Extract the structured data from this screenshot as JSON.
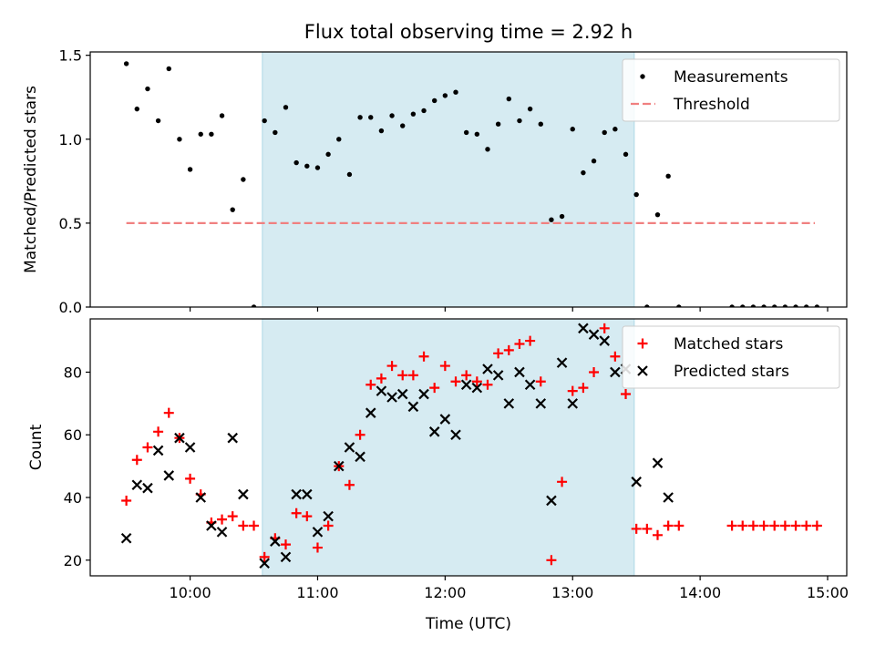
{
  "title": "Flux total observing time = 2.92 h",
  "colors": {
    "band": "#add8e6",
    "band_alpha": 0.5,
    "threshold": "#f08080",
    "measurement": "#000000",
    "matched": "#ff0000",
    "predicted": "#000000"
  },
  "chart_data": [
    {
      "type": "scatter",
      "ylabel": "Matched/Predicted stars",
      "xlabel": "",
      "xlim": [
        "09:13",
        "15:09"
      ],
      "ylim": [
        0,
        1.52
      ],
      "yticks": [
        "0.0",
        "0.5",
        "1.0",
        "1.5"
      ],
      "shaded_interval": [
        "10:34",
        "13:29"
      ],
      "threshold": {
        "name": "Threshold",
        "x": [
          "09:30",
          "14:54"
        ],
        "y": 0.5
      },
      "legend": [
        "Measurements",
        "Threshold"
      ],
      "legend_position": "upper right",
      "series": [
        {
          "name": "Measurements",
          "x": [
            "09:30",
            "09:35",
            "09:40",
            "09:45",
            "09:50",
            "09:55",
            "10:00",
            "10:05",
            "10:10",
            "10:15",
            "10:20",
            "10:25",
            "10:30",
            "10:35",
            "10:40",
            "10:45",
            "10:50",
            "10:55",
            "11:00",
            "11:05",
            "11:10",
            "11:15",
            "11:20",
            "11:25",
            "11:30",
            "11:35",
            "11:40",
            "11:45",
            "11:50",
            "11:55",
            "12:00",
            "12:05",
            "12:10",
            "12:15",
            "12:20",
            "12:25",
            "12:30",
            "12:35",
            "12:40",
            "12:45",
            "12:50",
            "12:55",
            "13:00",
            "13:05",
            "13:10",
            "13:15",
            "13:20",
            "13:25",
            "13:30",
            "13:35",
            "13:40",
            "13:45",
            "13:50",
            "14:15",
            "14:20",
            "14:25",
            "14:30",
            "14:35",
            "14:40",
            "14:45",
            "14:50",
            "14:55"
          ],
          "y": [
            1.45,
            1.18,
            1.3,
            1.11,
            1.42,
            1.0,
            0.82,
            1.03,
            1.03,
            1.14,
            0.58,
            0.76,
            0.0,
            1.11,
            1.04,
            1.19,
            0.86,
            0.84,
            0.83,
            0.91,
            1.0,
            0.79,
            1.13,
            1.13,
            1.05,
            1.14,
            1.08,
            1.15,
            1.17,
            1.23,
            1.26,
            1.28,
            1.04,
            1.03,
            0.94,
            1.09,
            1.24,
            1.11,
            1.18,
            1.09,
            0.52,
            0.54,
            1.06,
            0.8,
            0.87,
            1.04,
            1.06,
            0.91,
            0.67,
            0.0,
            0.55,
            0.78,
            0.0,
            0.0,
            0.0,
            0.0,
            0.0,
            0.0,
            0.0,
            0.0,
            0.0,
            0.0
          ]
        }
      ]
    },
    {
      "type": "scatter",
      "ylabel": "Count",
      "xlabel": "Time (UTC)",
      "xlim": [
        "09:13",
        "15:09"
      ],
      "ylim": [
        15,
        97
      ],
      "yticks": [
        "20",
        "40",
        "60",
        "80"
      ],
      "xticks": [
        "10:00",
        "11:00",
        "12:00",
        "13:00",
        "14:00",
        "15:00"
      ],
      "shaded_interval": [
        "10:34",
        "13:29"
      ],
      "legend": [
        "Matched stars",
        "Predicted stars"
      ],
      "legend_position": "upper right",
      "series": [
        {
          "name": "Matched stars",
          "marker": "+",
          "x": [
            "09:30",
            "09:35",
            "09:40",
            "09:45",
            "09:50",
            "09:55",
            "10:00",
            "10:05",
            "10:10",
            "10:15",
            "10:20",
            "10:25",
            "10:30",
            "10:35",
            "10:40",
            "10:45",
            "10:50",
            "10:55",
            "11:00",
            "11:05",
            "11:10",
            "11:15",
            "11:20",
            "11:25",
            "11:30",
            "11:35",
            "11:40",
            "11:45",
            "11:50",
            "11:55",
            "12:00",
            "12:05",
            "12:10",
            "12:15",
            "12:20",
            "12:25",
            "12:30",
            "12:35",
            "12:40",
            "12:45",
            "12:50",
            "12:55",
            "13:00",
            "13:05",
            "13:10",
            "13:15",
            "13:20",
            "13:25",
            "13:30",
            "13:35",
            "13:40",
            "13:45",
            "13:50",
            "14:15",
            "14:20",
            "14:25",
            "14:30",
            "14:35",
            "14:40",
            "14:45",
            "14:50",
            "14:55"
          ],
          "y": [
            39,
            52,
            56,
            61,
            67,
            59,
            46,
            41,
            32,
            33,
            34,
            31,
            31,
            21,
            27,
            25,
            35,
            34,
            24,
            31,
            50,
            44,
            60,
            76,
            78,
            82,
            79,
            79,
            85,
            75,
            82,
            77,
            79,
            77,
            76,
            86,
            87,
            89,
            90,
            77,
            20,
            45,
            74,
            75,
            80,
            94,
            85,
            73,
            30,
            30,
            28,
            31,
            31,
            31,
            31,
            31,
            31,
            31,
            31,
            31,
            31,
            31
          ]
        },
        {
          "name": "Predicted stars",
          "marker": "x",
          "x": [
            "09:30",
            "09:35",
            "09:40",
            "09:45",
            "09:50",
            "09:55",
            "10:00",
            "10:05",
            "10:10",
            "10:15",
            "10:20",
            "10:25",
            "10:35",
            "10:40",
            "10:45",
            "10:50",
            "10:55",
            "11:00",
            "11:05",
            "11:10",
            "11:15",
            "11:20",
            "11:25",
            "11:30",
            "11:35",
            "11:40",
            "11:45",
            "11:50",
            "11:55",
            "12:00",
            "12:05",
            "12:10",
            "12:15",
            "12:20",
            "12:25",
            "12:30",
            "12:35",
            "12:40",
            "12:45",
            "12:50",
            "12:55",
            "13:00",
            "13:05",
            "13:10",
            "13:15",
            "13:20",
            "13:25",
            "13:30",
            "13:40",
            "13:45"
          ],
          "y": [
            27,
            44,
            43,
            55,
            47,
            59,
            56,
            40,
            31,
            29,
            59,
            41,
            19,
            26,
            21,
            41,
            41,
            29,
            34,
            50,
            56,
            53,
            67,
            74,
            72,
            73,
            69,
            73,
            61,
            65,
            60,
            76,
            75,
            81,
            79,
            70,
            80,
            76,
            70,
            39,
            83,
            70,
            94,
            92,
            90,
            80,
            81,
            45,
            51,
            40
          ]
        }
      ]
    }
  ]
}
